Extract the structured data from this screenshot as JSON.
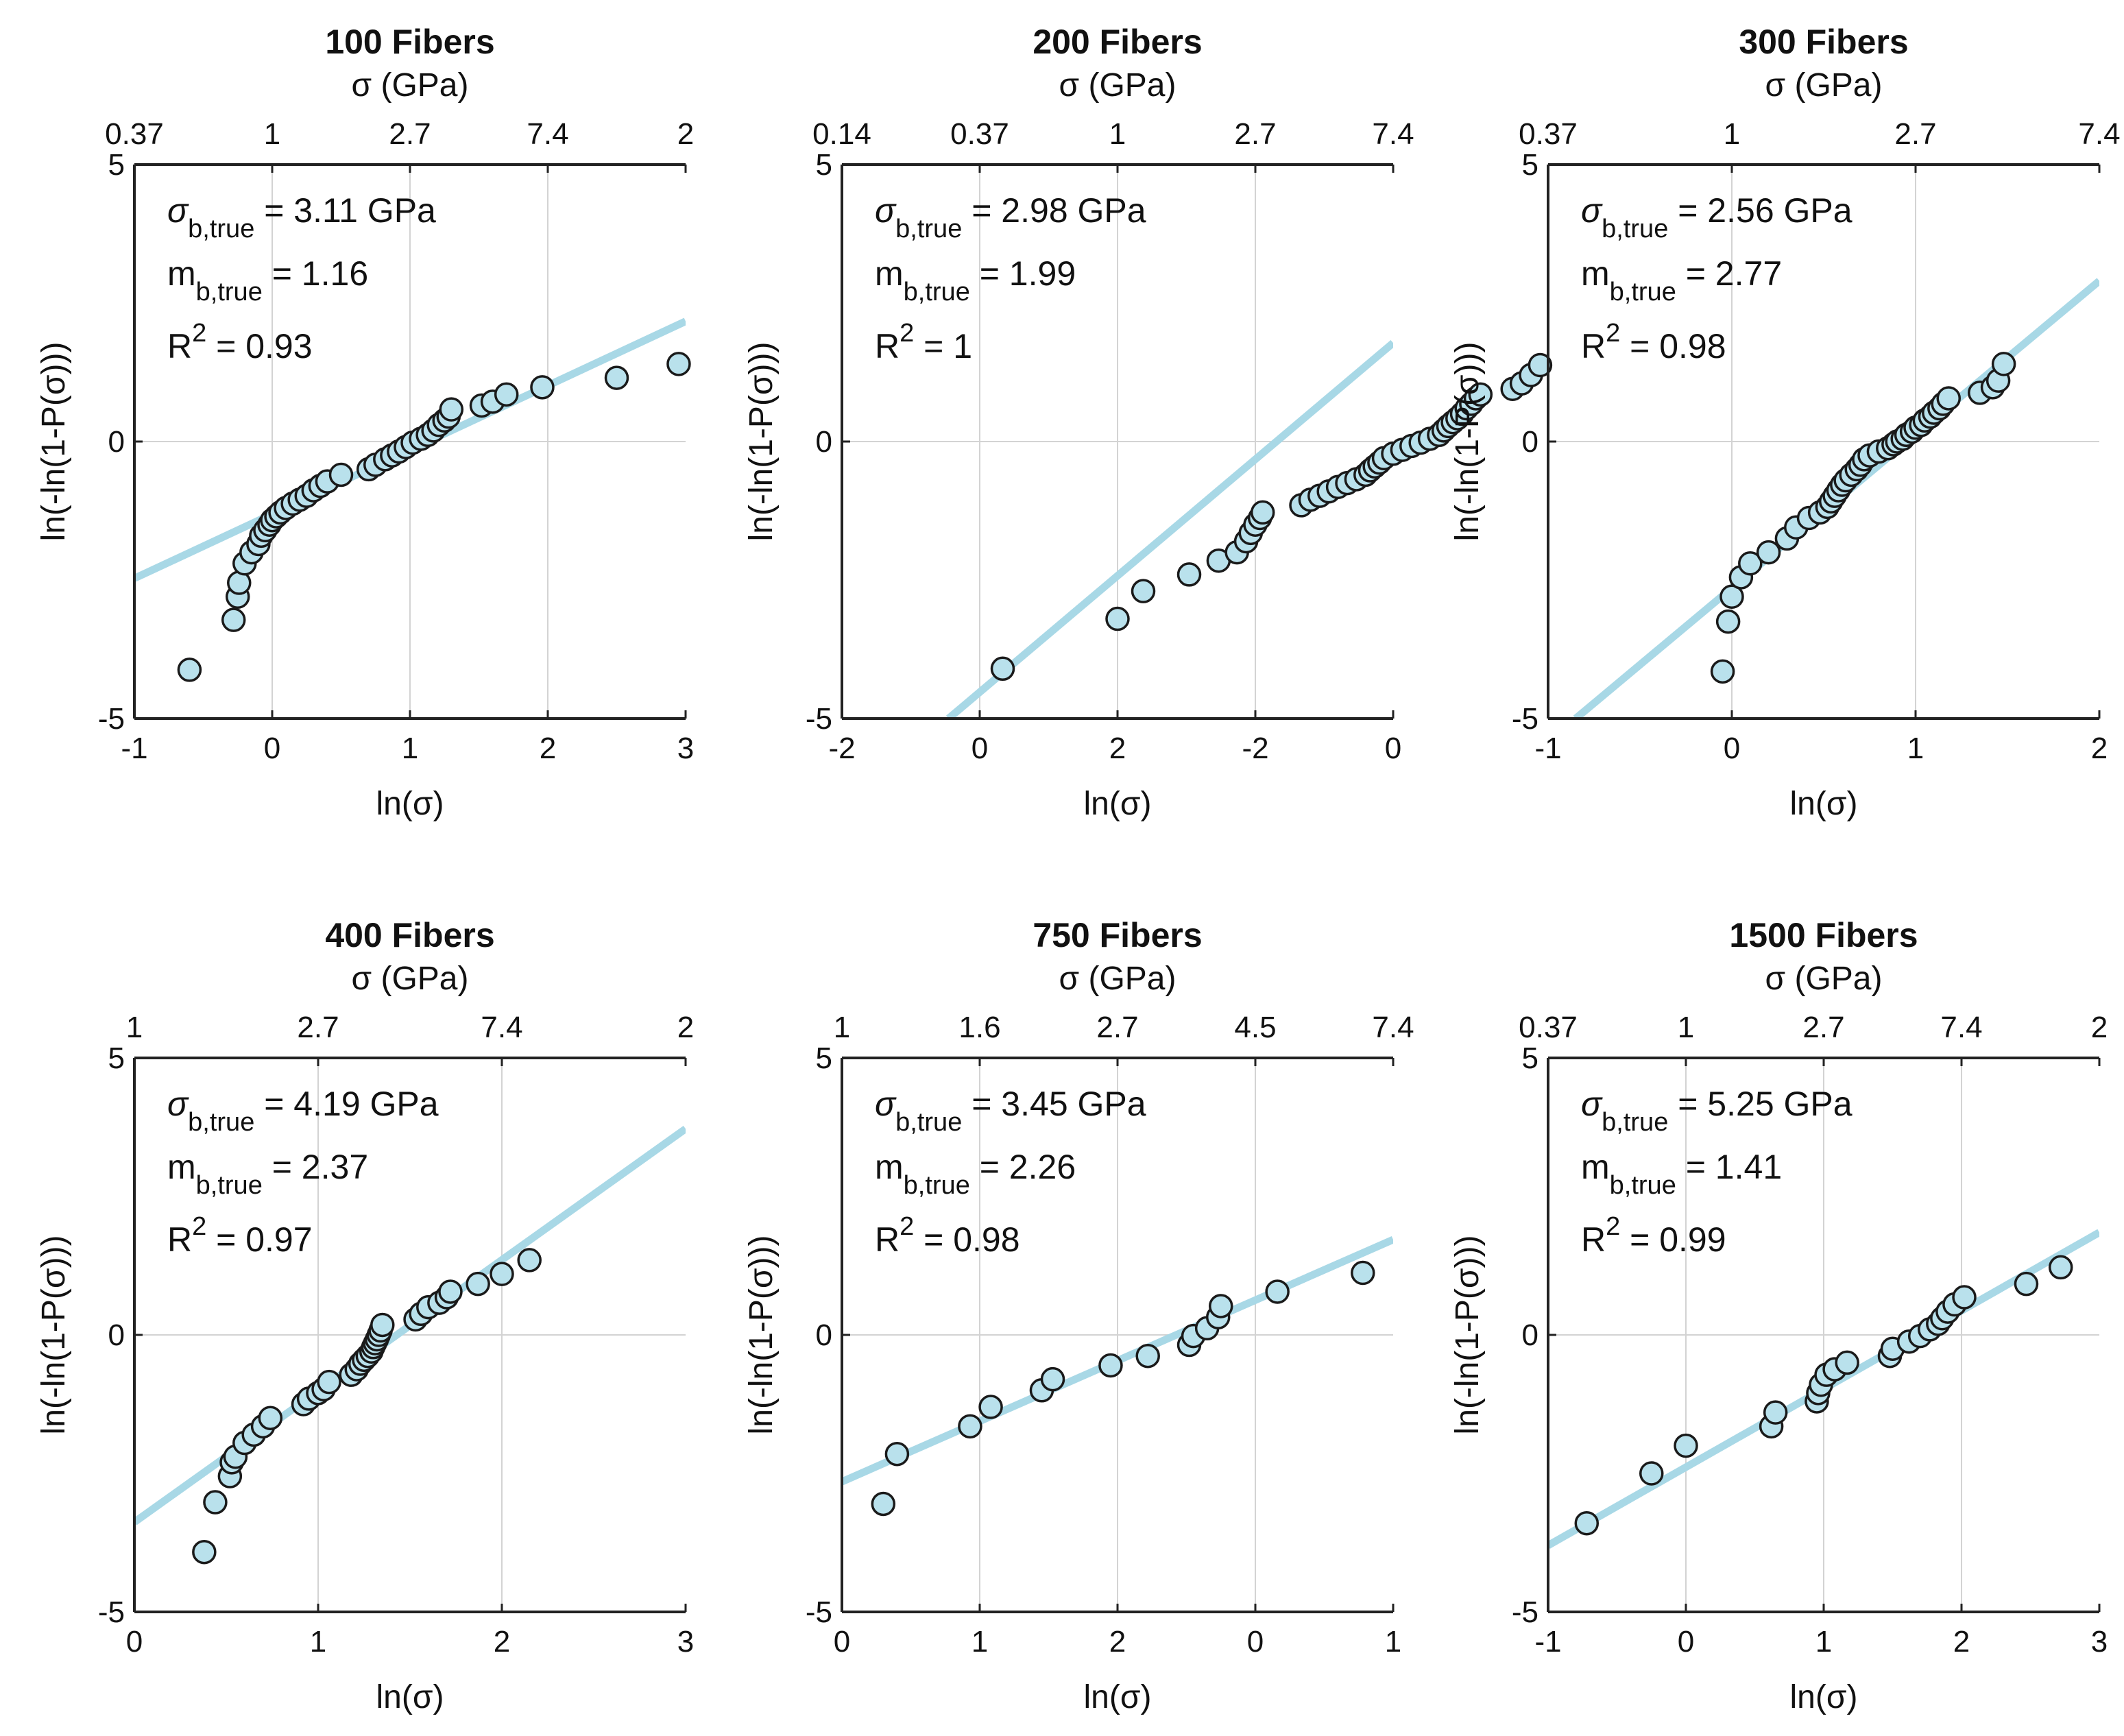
{
  "colors": {
    "marker_fill": "#b9e1ec",
    "marker_edge": "#1a1a1a",
    "fit_line": "#a8d8e6",
    "grid": "#d3d3d3",
    "axis": "#222222"
  },
  "chart_data": [
    {
      "type": "scatter",
      "title": "100 Fibers",
      "top_axis_label": "σ (GPa)",
      "top_ticks": [
        "0.37",
        "1",
        "2.7",
        "7.4",
        "2"
      ],
      "xlabel": "ln(σ)",
      "ylabel": "ln(-ln(1-P(σ)))",
      "xlim": [
        -1,
        3
      ],
      "ylim": [
        -5,
        5
      ],
      "x_ticks": [
        "-1",
        "0",
        "1",
        "2",
        "3"
      ],
      "y_ticks": [
        "-5",
        "0",
        "5"
      ],
      "stats": {
        "sigma_label": "σ",
        "sigma_sub": "b,true",
        "sigma_val": " = 3.11 GPa",
        "m_label": "m",
        "m_sub": "b,true",
        "m_val": " = 1.16",
        "r2_label": "R",
        "r2_sup": "2",
        "r2_val": " = 0.93"
      },
      "fit_line": {
        "x": [
          -1,
          3
        ],
        "y": [
          -2.47,
          2.17
        ]
      },
      "x": [
        -0.6,
        -0.28,
        -0.25,
        -0.24,
        -0.2,
        -0.15,
        -0.1,
        -0.08,
        -0.05,
        -0.02,
        0.0,
        0.03,
        0.06,
        0.1,
        0.15,
        0.2,
        0.25,
        0.3,
        0.35,
        0.4,
        0.5,
        0.7,
        0.75,
        0.82,
        0.87,
        0.92,
        0.97,
        1.02,
        1.08,
        1.13,
        1.17,
        1.21,
        1.25,
        1.28,
        1.3,
        1.52,
        1.6,
        1.7,
        1.96,
        2.5,
        2.95
      ],
      "y": [
        -4.12,
        -3.22,
        -2.8,
        -2.55,
        -2.2,
        -2.0,
        -1.85,
        -1.7,
        -1.6,
        -1.5,
        -1.42,
        -1.35,
        -1.28,
        -1.2,
        -1.12,
        -1.05,
        -0.98,
        -0.88,
        -0.8,
        -0.72,
        -0.6,
        -0.5,
        -0.42,
        -0.32,
        -0.25,
        -0.18,
        -0.1,
        -0.02,
        0.05,
        0.12,
        0.2,
        0.3,
        0.38,
        0.45,
        0.58,
        0.65,
        0.72,
        0.85,
        0.98,
        1.15,
        1.4
      ]
    },
    {
      "type": "scatter",
      "title": "200 Fibers",
      "top_axis_label": "σ (GPa)",
      "top_ticks": [
        "0.14",
        "0.37",
        "1",
        "2.7",
        "7.4"
      ],
      "xlabel": "ln(σ)",
      "ylabel": "ln(-ln(1-P(σ)))",
      "xlim": [
        -2,
        4
      ],
      "ylim": [
        -5,
        5
      ],
      "x_ticks": [
        "-2",
        "0",
        "2",
        "-2",
        "0"
      ],
      "y_ticks": [
        "-5",
        "0",
        "5"
      ],
      "stats": {
        "sigma_label": "σ",
        "sigma_sub": "b,true",
        "sigma_val": " = 2.98 GPa",
        "m_label": "m",
        "m_sub": "b,true",
        "m_val": " = 1.99",
        "r2_label": "R",
        "r2_sup": "2",
        "r2_val": " = 1"
      },
      "fit_line": {
        "x": [
          -0.84,
          4.0
        ],
        "y": [
          -5.0,
          1.78
        ]
      },
      "x": [
        -0.25,
        1.0,
        1.28,
        1.78,
        2.1,
        2.3,
        2.4,
        2.45,
        2.5,
        2.55,
        2.58,
        3.0,
        3.1,
        3.2,
        3.3,
        3.4,
        3.5,
        3.6,
        3.7,
        3.75,
        3.8,
        3.85,
        3.9,
        4.0,
        4.1,
        4.2,
        4.3,
        4.4,
        4.5,
        4.55,
        4.6,
        4.65,
        4.7,
        4.75,
        4.8,
        4.85,
        4.9,
        4.95,
        5.3,
        5.4,
        5.5,
        5.6
      ],
      "y": [
        -4.1,
        -3.2,
        -2.7,
        -2.4,
        -2.15,
        -2.0,
        -1.8,
        -1.65,
        -1.5,
        -1.38,
        -1.28,
        -1.15,
        -1.05,
        -0.98,
        -0.9,
        -0.82,
        -0.75,
        -0.68,
        -0.6,
        -0.52,
        -0.45,
        -0.38,
        -0.3,
        -0.22,
        -0.15,
        -0.08,
        -0.02,
        0.05,
        0.12,
        0.2,
        0.28,
        0.35,
        0.42,
        0.5,
        0.6,
        0.68,
        0.78,
        0.85,
        0.95,
        1.05,
        1.2,
        1.38
      ]
    },
    {
      "type": "scatter",
      "title": "300 Fibers",
      "top_axis_label": "σ (GPa)",
      "top_ticks": [
        "0.37",
        "1",
        "2.7",
        "7.4"
      ],
      "xlabel": "ln(σ)",
      "ylabel": "ln(-ln(1-P(σ)))",
      "xlim": [
        -1,
        2
      ],
      "ylim": [
        -5,
        5
      ],
      "x_ticks": [
        "-1",
        "0",
        "1",
        "2"
      ],
      "y_ticks": [
        "-5",
        "0",
        "5"
      ],
      "stats": {
        "sigma_label": "σ",
        "sigma_sub": "b,true",
        "sigma_val": " = 2.56 GPa",
        "m_label": "m",
        "m_sub": "b,true",
        "m_val": " = 2.77",
        "r2_label": "R",
        "r2_sup": "2",
        "r2_val": " = 0.98"
      },
      "fit_line": {
        "x": [
          -0.85,
          2.0
        ],
        "y": [
          -5.0,
          2.9
        ]
      },
      "x": [
        -0.05,
        -0.02,
        0.0,
        0.05,
        0.1,
        0.2,
        0.3,
        0.35,
        0.42,
        0.48,
        0.52,
        0.54,
        0.56,
        0.58,
        0.6,
        0.62,
        0.65,
        0.68,
        0.7,
        0.72,
        0.75,
        0.8,
        0.85,
        0.88,
        0.9,
        0.93,
        0.95,
        0.98,
        1.0,
        1.03,
        1.05,
        1.08,
        1.1,
        1.13,
        1.15,
        1.18,
        1.35,
        1.42,
        1.45,
        1.48
      ],
      "y": [
        -4.15,
        -3.25,
        -2.8,
        -2.45,
        -2.2,
        -2.0,
        -1.75,
        -1.55,
        -1.38,
        -1.28,
        -1.18,
        -1.08,
        -0.98,
        -0.88,
        -0.78,
        -0.7,
        -0.6,
        -0.5,
        -0.42,
        -0.32,
        -0.25,
        -0.18,
        -0.12,
        -0.05,
        0.0,
        0.05,
        0.12,
        0.18,
        0.25,
        0.3,
        0.38,
        0.45,
        0.52,
        0.6,
        0.68,
        0.78,
        0.88,
        0.98,
        1.1,
        1.4
      ]
    },
    {
      "type": "scatter",
      "title": "400 Fibers",
      "top_axis_label": "σ (GPa)",
      "top_ticks": [
        "1",
        "2.7",
        "7.4",
        "2"
      ],
      "xlabel": "ln(σ)",
      "ylabel": "ln(-ln(1-P(σ)))",
      "xlim": [
        0,
        3
      ],
      "ylim": [
        -5,
        5
      ],
      "x_ticks": [
        "0",
        "1",
        "2",
        "3"
      ],
      "y_ticks": [
        "-5",
        "0",
        "5"
      ],
      "stats": {
        "sigma_label": "σ",
        "sigma_sub": "b,true",
        "sigma_val": " = 4.19 GPa",
        "m_label": "m",
        "m_sub": "b,true",
        "m_val": " = 2.37",
        "r2_label": "R",
        "r2_sup": "2",
        "r2_val": " = 0.97"
      },
      "fit_line": {
        "x": [
          0,
          3
        ],
        "y": [
          -3.38,
          3.72
        ]
      },
      "x": [
        0.38,
        0.44,
        0.52,
        0.53,
        0.55,
        0.6,
        0.65,
        0.7,
        0.74,
        0.92,
        0.95,
        1.0,
        1.03,
        1.06,
        1.18,
        1.21,
        1.23,
        1.25,
        1.27,
        1.29,
        1.3,
        1.31,
        1.32,
        1.33,
        1.34,
        1.35,
        1.53,
        1.56,
        1.6,
        1.66,
        1.7,
        1.72,
        1.87,
        2.0,
        2.15
      ],
      "y": [
        -3.92,
        -3.02,
        -2.55,
        -2.3,
        -2.2,
        -1.95,
        -1.8,
        -1.65,
        -1.5,
        -1.25,
        -1.15,
        -1.05,
        -0.98,
        -0.85,
        -0.72,
        -0.62,
        -0.52,
        -0.45,
        -0.38,
        -0.3,
        -0.22,
        -0.15,
        -0.08,
        0.0,
        0.08,
        0.18,
        0.28,
        0.38,
        0.5,
        0.58,
        0.68,
        0.78,
        0.92,
        1.1,
        1.35
      ]
    },
    {
      "type": "scatter",
      "title": "750 Fibers",
      "top_axis_label": "σ (GPa)",
      "top_ticks": [
        "1",
        "1.6",
        "2.7",
        "4.5",
        "7.4"
      ],
      "xlabel": "ln(σ)",
      "ylabel": "ln(-ln(1-P(σ)))",
      "xlim": [
        0,
        4
      ],
      "ylim": [
        -5,
        5
      ],
      "x_ticks": [
        "0",
        "1",
        "2",
        "0",
        "1"
      ],
      "y_ticks": [
        "-5",
        "0",
        "5"
      ],
      "stats": {
        "sigma_label": "σ",
        "sigma_sub": "b,true",
        "sigma_val": " = 3.45 GPa",
        "m_label": "m",
        "m_sub": "b,true",
        "m_val": " = 2.26",
        "r2_label": "R",
        "r2_sup": "2",
        "r2_val": " = 0.98"
      },
      "fit_line": {
        "x": [
          0,
          4
        ],
        "y": [
          -2.65,
          1.72
        ]
      },
      "x": [
        0.3,
        0.4,
        0.93,
        1.08,
        1.45,
        1.53,
        1.95,
        2.22,
        2.52,
        2.55,
        2.65,
        2.73,
        2.75,
        3.16,
        3.78
      ],
      "y": [
        -3.05,
        -2.15,
        -1.65,
        -1.3,
        -1.0,
        -0.8,
        -0.55,
        -0.38,
        -0.18,
        -0.02,
        0.12,
        0.32,
        0.52,
        0.78,
        1.12
      ]
    },
    {
      "type": "scatter",
      "title": "1500 Fibers",
      "top_axis_label": "σ (GPa)",
      "top_ticks": [
        "0.37",
        "1",
        "2.7",
        "7.4",
        "2"
      ],
      "xlabel": "ln(σ)",
      "ylabel": "ln(-ln(1-P(σ)))",
      "xlim": [
        -1,
        3
      ],
      "ylim": [
        -5,
        5
      ],
      "x_ticks": [
        "-1",
        "0",
        "1",
        "2",
        "3"
      ],
      "y_ticks": [
        "-5",
        "0",
        "5"
      ],
      "stats": {
        "sigma_label": "σ",
        "sigma_sub": "b,true",
        "sigma_val": " = 5.25 GPa",
        "m_label": "m",
        "m_sub": "b,true",
        "m_val": " = 1.41",
        "r2_label": "R",
        "r2_sup": "2",
        "r2_val": " = 0.99"
      },
      "fit_line": {
        "x": [
          -1,
          3
        ],
        "y": [
          -3.8,
          1.85
        ]
      },
      "x": [
        -0.72,
        -0.25,
        -0.0,
        0.62,
        0.65,
        0.95,
        0.96,
        0.98,
        1.02,
        1.08,
        1.17,
        1.48,
        1.5,
        1.62,
        1.7,
        1.77,
        1.83,
        1.86,
        1.9,
        1.95,
        2.02,
        2.47,
        2.72
      ],
      "y": [
        -3.4,
        -2.5,
        -2.0,
        -1.65,
        -1.4,
        -1.2,
        -1.05,
        -0.9,
        -0.72,
        -0.62,
        -0.5,
        -0.38,
        -0.25,
        -0.12,
        -0.02,
        0.1,
        0.2,
        0.3,
        0.42,
        0.55,
        0.68,
        0.92,
        1.22
      ]
    }
  ]
}
